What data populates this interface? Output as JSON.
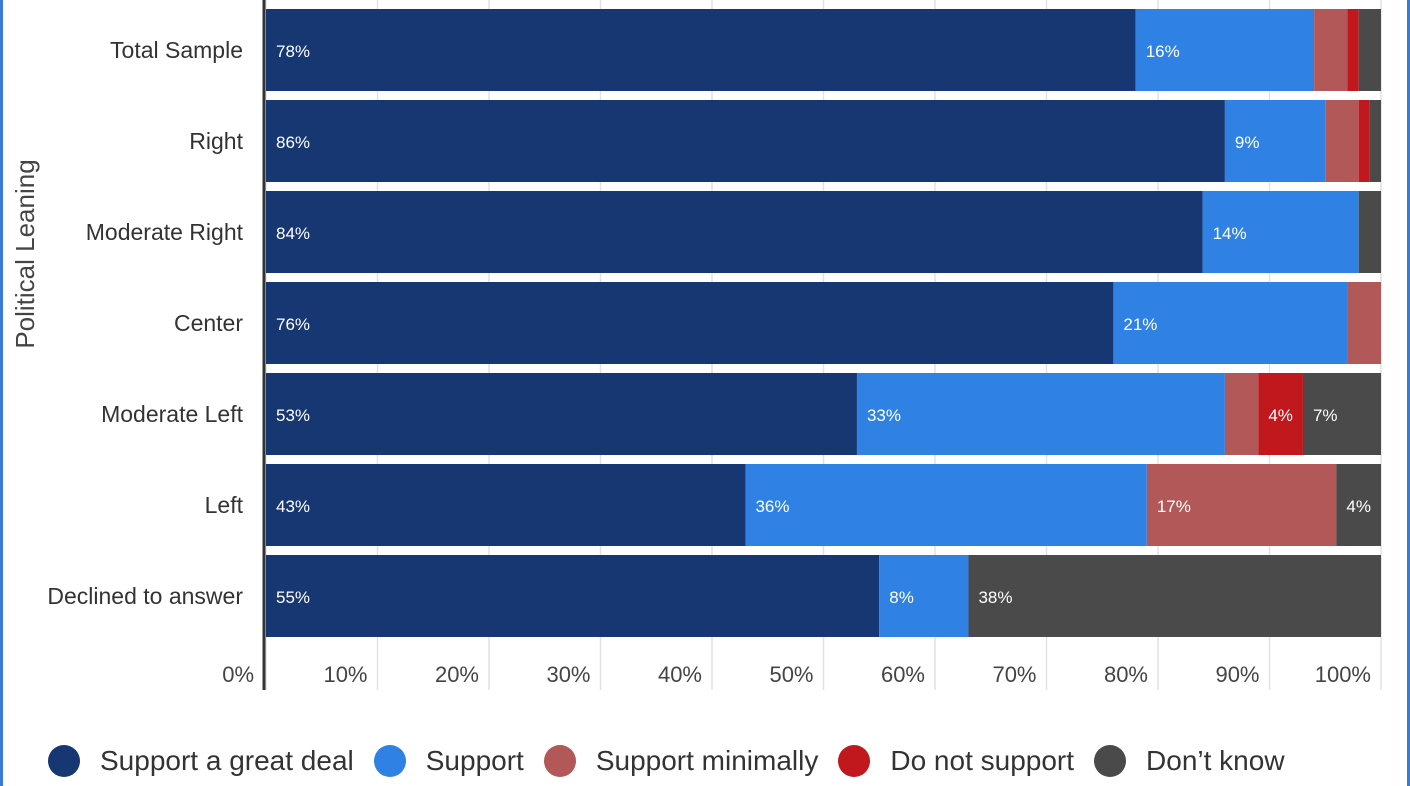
{
  "chart_data": {
    "type": "bar",
    "orientation": "horizontal",
    "stacked": true,
    "ylabel": "Political Leaning",
    "xlabel": "",
    "xlim": [
      0,
      100
    ],
    "x_ticks": [
      "0%",
      "10%",
      "20%",
      "30%",
      "40%",
      "50%",
      "60%",
      "70%",
      "80%",
      "90%",
      "100%"
    ],
    "grid": true,
    "legend_position": "bottom",
    "categories": [
      "Total Sample",
      "Right",
      "Moderate Right",
      "Center",
      "Moderate Left",
      "Left",
      "Declined to answer"
    ],
    "series": [
      {
        "name": "Support a great deal",
        "color": "#163772",
        "values": [
          78,
          86,
          84,
          76,
          53,
          43,
          55
        ],
        "labels": [
          "78%",
          "86%",
          "84%",
          "76%",
          "53%",
          "43%",
          "55%"
        ]
      },
      {
        "name": "Support",
        "color": "#2f82e4",
        "values": [
          16,
          9,
          14,
          21,
          33,
          36,
          8
        ],
        "labels": [
          "16%",
          "9%",
          "14%",
          "21%",
          "33%",
          "36%",
          "8%"
        ]
      },
      {
        "name": "Support minimally",
        "color": "#b25858",
        "values": [
          3,
          3,
          0,
          3,
          3,
          17,
          0
        ],
        "labels": [
          "",
          "",
          "",
          "",
          "",
          "17%",
          ""
        ]
      },
      {
        "name": "Do not support",
        "color": "#c0181d",
        "values": [
          1,
          1,
          0,
          0,
          4,
          0,
          0
        ],
        "labels": [
          "",
          "",
          "",
          "",
          "4%",
          "",
          ""
        ]
      },
      {
        "name": "Don’t know",
        "color": "#4a4a4a",
        "values": [
          2,
          1,
          2,
          1,
          7,
          4,
          38
        ],
        "labels": [
          "",
          "",
          "",
          "",
          "7%",
          "4%",
          "38%"
        ]
      }
    ]
  }
}
